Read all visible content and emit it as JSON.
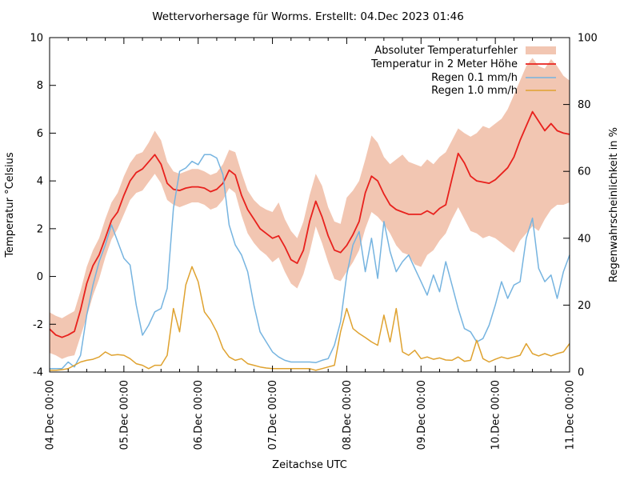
{
  "page": {
    "background": "#ffffff"
  },
  "title": "Wettervorhersage für Worms. Erstellt: 04.Dec 2023 01:46",
  "chart_data": {
    "type": "line",
    "title": "Wettervorhersage für Worms. Erstellt: 04.Dec 2023 01:46",
    "grid": false,
    "legend_position": "top-right-inside",
    "x_axis": {
      "label": "Zeitachse UTC",
      "tick_labels": [
        "04.Dec 00:00",
        "05.Dec 00:00",
        "06.Dec 00:00",
        "07.Dec 00:00",
        "08.Dec 00:00",
        "09.Dec 00:00",
        "10.Dec 00:00",
        "11.Dec 00:00"
      ],
      "hours_span": 168,
      "minor_tick_every_hours": 6
    },
    "y_left_axis": {
      "label": "Temperatur °Celsius",
      "range": [
        -4,
        10
      ],
      "ticks": [
        10,
        8,
        6,
        4,
        2,
        0,
        -2,
        -4
      ]
    },
    "y_right_axis": {
      "label": "Regenwahrscheinlichkeit in %",
      "range": [
        0,
        100
      ],
      "ticks": [
        100,
        80,
        60,
        40,
        20,
        0
      ]
    },
    "sample_interval_hours": 2,
    "series": [
      {
        "name": "Absoluter Temperaturfehler",
        "type": "band",
        "axis": "left",
        "color": "#f2c6b2",
        "upper": [
          -1.5,
          -1.65,
          -1.75,
          -1.6,
          -1.45,
          -0.6,
          0.4,
          1.1,
          1.6,
          2.4,
          3.1,
          3.5,
          4.2,
          4.75,
          5.1,
          5.2,
          5.6,
          6.1,
          5.7,
          4.8,
          4.4,
          4.3,
          4.4,
          4.5,
          4.5,
          4.4,
          4.25,
          4.35,
          4.7,
          5.3,
          5.2,
          4.35,
          3.6,
          3.2,
          2.95,
          2.8,
          2.7,
          3.1,
          2.4,
          1.9,
          1.6,
          2.3,
          3.4,
          4.3,
          3.8,
          2.9,
          2.3,
          2.2,
          3.3,
          3.6,
          4.0,
          4.9,
          5.9,
          5.6,
          5.0,
          4.7,
          4.9,
          5.1,
          4.8,
          4.7,
          4.6,
          4.9,
          4.7,
          5.0,
          5.2,
          5.7,
          6.2,
          6.0,
          5.85,
          6.0,
          6.3,
          6.2,
          6.4,
          6.6,
          7.0,
          7.6,
          8.2,
          8.8,
          9.15,
          8.8,
          8.7,
          9.1,
          8.8,
          8.4,
          8.2
        ],
        "lower": [
          -3.2,
          -3.3,
          -3.45,
          -3.35,
          -3.3,
          -2.5,
          -1.7,
          -0.8,
          -0.1,
          0.8,
          1.55,
          2.0,
          2.6,
          3.2,
          3.5,
          3.6,
          3.95,
          4.3,
          3.9,
          3.2,
          3.0,
          2.9,
          3.0,
          3.1,
          3.1,
          3.0,
          2.8,
          2.9,
          3.2,
          3.7,
          3.5,
          2.55,
          1.8,
          1.4,
          1.1,
          0.9,
          0.6,
          0.8,
          0.2,
          -0.3,
          -0.5,
          0.1,
          1.0,
          2.1,
          1.4,
          0.6,
          -0.1,
          -0.2,
          0.2,
          0.6,
          1.1,
          2.0,
          2.7,
          2.5,
          2.2,
          1.8,
          1.3,
          1.0,
          0.9,
          0.5,
          0.4,
          0.9,
          1.1,
          1.5,
          1.8,
          2.4,
          2.9,
          2.4,
          1.9,
          1.8,
          1.6,
          1.7,
          1.6,
          1.4,
          1.2,
          1.0,
          1.5,
          1.8,
          2.1,
          1.9,
          2.4,
          2.8,
          3.0,
          3.0,
          3.1
        ]
      },
      {
        "name": "Temperatur in 2 Meter Höhe",
        "type": "line",
        "axis": "left",
        "color": "#e8211d",
        "values": [
          -2.2,
          -2.45,
          -2.55,
          -2.45,
          -2.3,
          -1.4,
          -0.3,
          0.45,
          0.9,
          1.6,
          2.35,
          2.7,
          3.4,
          4.0,
          4.35,
          4.5,
          4.8,
          5.1,
          4.7,
          3.9,
          3.65,
          3.6,
          3.7,
          3.75,
          3.75,
          3.7,
          3.55,
          3.65,
          3.9,
          4.45,
          4.25,
          3.4,
          2.8,
          2.4,
          2.0,
          1.8,
          1.6,
          1.7,
          1.25,
          0.7,
          0.55,
          1.1,
          2.3,
          3.15,
          2.5,
          1.7,
          1.1,
          1.0,
          1.3,
          1.75,
          2.3,
          3.5,
          4.2,
          4.0,
          3.45,
          3.0,
          2.8,
          2.7,
          2.6,
          2.6,
          2.6,
          2.75,
          2.6,
          2.85,
          3.0,
          4.1,
          5.15,
          4.75,
          4.2,
          4.0,
          3.95,
          3.9,
          4.05,
          4.3,
          4.55,
          5.0,
          5.7,
          6.3,
          6.9,
          6.5,
          6.1,
          6.4,
          6.1,
          6.0,
          5.95
        ]
      },
      {
        "name": "Regen 0.1 mm/h",
        "type": "line",
        "axis": "right",
        "color": "#76b4e0",
        "values": [
          1,
          1,
          1,
          3,
          1.5,
          5,
          17,
          26,
          33,
          38,
          44,
          39,
          34,
          32,
          20,
          11,
          14,
          18,
          19,
          25,
          49,
          60,
          61,
          63,
          62,
          65,
          65,
          64,
          59,
          44,
          38,
          35,
          30,
          20,
          12,
          9,
          6,
          4.5,
          3.5,
          3,
          3,
          3,
          3,
          2.8,
          3.5,
          4,
          8,
          15,
          29,
          38,
          42,
          30,
          40,
          28,
          45,
          36,
          30,
          33,
          35,
          31,
          27,
          23,
          29,
          24,
          33,
          26,
          19,
          13,
          12,
          9,
          10,
          14,
          20,
          27,
          22,
          26,
          27,
          40,
          46,
          31,
          27,
          29,
          22,
          30,
          35
        ]
      },
      {
        "name": "Regen 1.0 mm/h",
        "type": "line",
        "axis": "right",
        "color": "#dfa22f",
        "values": [
          0.5,
          0.5,
          0.7,
          1,
          2,
          3,
          3.5,
          3.8,
          4.5,
          6,
          5,
          5.2,
          5,
          4,
          2.5,
          2,
          1,
          2,
          2,
          5,
          19,
          12,
          26,
          31.5,
          27,
          18,
          15.5,
          12,
          7,
          4.5,
          3.5,
          4,
          2.5,
          2,
          1.5,
          1.2,
          1,
          1,
          1,
          1,
          1,
          1,
          1,
          0.5,
          1,
          1.5,
          2,
          12,
          19,
          13,
          11.5,
          10.3,
          9,
          8,
          17,
          9,
          19,
          6,
          5,
          6.5,
          4,
          4.5,
          3.8,
          4.2,
          3.6,
          3.5,
          4.5,
          3.2,
          3.5,
          9.5,
          4,
          3,
          3.8,
          4.5,
          4,
          4.5,
          5,
          8.5,
          5.5,
          4.8,
          5.5,
          4.8,
          5.5,
          6,
          8.5
        ]
      }
    ]
  }
}
